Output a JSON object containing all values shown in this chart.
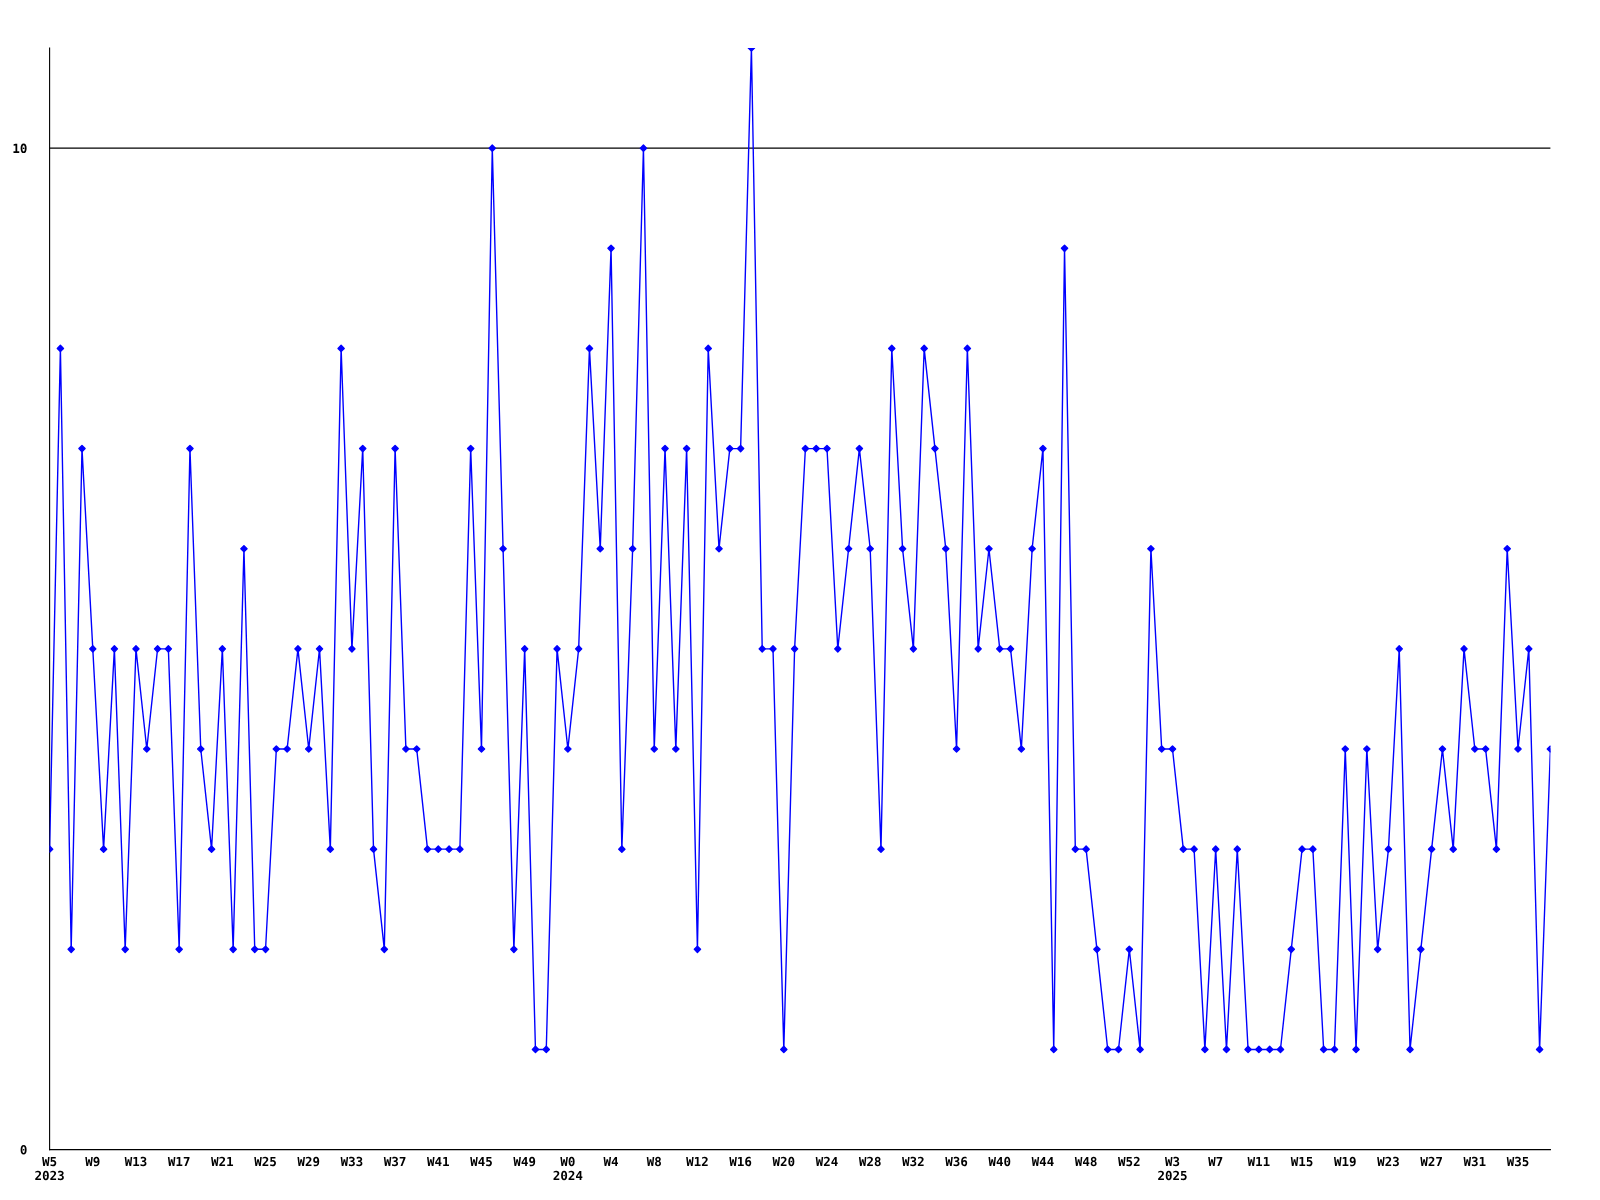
{
  "chart_data": {
    "type": "line",
    "categories": [
      "W5\n2023",
      null,
      null,
      null,
      "W9",
      null,
      null,
      null,
      "W13",
      null,
      null,
      null,
      "W17",
      null,
      null,
      null,
      "W21",
      null,
      null,
      null,
      "W25",
      null,
      null,
      null,
      "W29",
      null,
      null,
      null,
      "W33",
      null,
      null,
      null,
      "W37",
      null,
      null,
      null,
      "W41",
      null,
      null,
      null,
      "W45",
      null,
      null,
      null,
      "W49",
      null,
      null,
      null,
      "W0\n2024",
      null,
      null,
      null,
      "W4",
      null,
      null,
      null,
      "W8",
      null,
      null,
      null,
      "W12",
      null,
      null,
      null,
      "W16",
      null,
      null,
      null,
      "W20",
      null,
      null,
      null,
      "W24",
      null,
      null,
      null,
      "W28",
      null,
      null,
      null,
      "W32",
      null,
      null,
      null,
      "W36",
      null,
      null,
      null,
      "W40",
      null,
      null,
      null,
      "W44",
      null,
      null,
      null,
      "W48",
      null,
      null,
      null,
      "W52",
      null,
      null,
      null,
      "W3\n2025",
      null,
      null,
      null,
      "W7",
      null,
      null,
      null,
      "W11",
      null,
      null,
      null,
      "W15",
      null,
      null,
      null,
      "W19",
      null,
      null,
      null,
      "W23",
      null,
      null,
      null,
      "W27",
      null,
      null,
      null,
      "W31",
      null,
      null,
      null,
      "W35",
      null,
      null,
      null
    ],
    "series": [
      {
        "color": "#0000ff",
        "values": [
          3,
          8,
          2,
          7,
          5,
          3,
          5,
          2,
          5,
          4,
          5,
          5,
          2,
          7,
          4,
          3,
          5,
          2,
          6,
          2,
          2,
          4,
          4,
          5,
          4,
          5,
          3,
          8,
          5,
          7,
          3,
          2,
          7,
          4,
          4,
          3,
          3,
          3,
          3,
          7,
          4,
          10,
          6,
          2,
          5,
          1,
          1,
          5,
          4,
          5,
          8,
          6,
          9,
          3,
          6,
          10,
          4,
          7,
          4,
          7,
          2,
          8,
          6,
          7,
          7,
          11,
          5,
          5,
          1,
          5,
          7,
          7,
          7,
          5,
          6,
          7,
          6,
          3,
          8,
          6,
          5,
          8,
          7,
          6,
          4,
          8,
          5,
          6,
          5,
          5,
          4,
          6,
          7,
          1,
          9,
          3,
          3,
          2,
          1,
          1,
          2,
          1,
          6,
          4,
          4,
          3,
          3,
          1,
          3,
          1,
          3,
          1,
          1,
          1,
          1,
          2,
          3,
          3,
          1,
          1,
          4,
          1,
          4,
          2,
          3,
          5,
          1,
          2,
          3,
          4,
          3,
          5,
          4,
          4,
          3,
          6,
          4,
          5,
          1,
          4
        ]
      }
    ],
    "ylim": [
      0,
      11
    ],
    "yticks": [
      0,
      10
    ],
    "grid": "y",
    "marker": "diamond",
    "line_style": "solid"
  }
}
